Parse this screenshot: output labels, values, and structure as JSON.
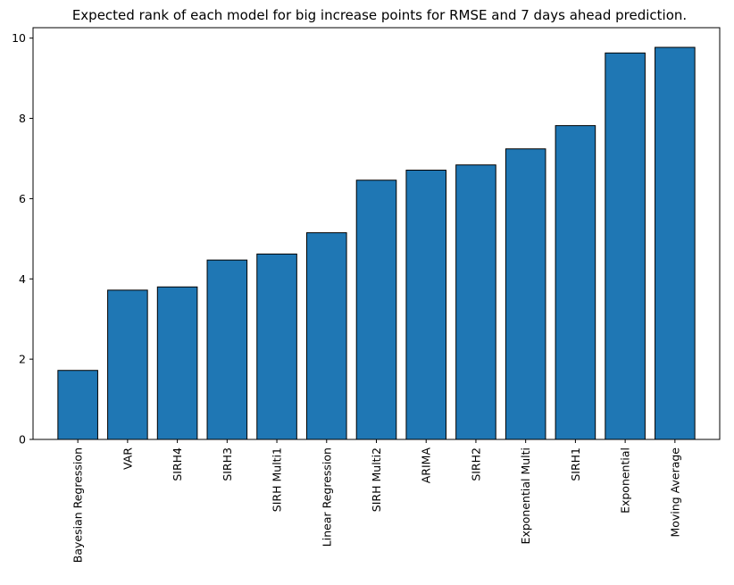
{
  "chart_data": {
    "type": "bar",
    "title": "Expected rank of each model for big increase points for RMSE and 7 days ahead prediction.",
    "xlabel": "",
    "ylabel": "",
    "categories": [
      "Bayesian Regression",
      "VAR",
      "SIRH4",
      "SIRH3",
      "SIRH Multi1",
      "Linear Regression",
      "SIRH Multi2",
      "ARIMA",
      "SIRH2",
      "Exponential Multi",
      "SIRH1",
      "Exponential",
      "Moving Average"
    ],
    "values": [
      1.72,
      3.72,
      3.8,
      4.47,
      4.62,
      5.15,
      6.46,
      6.71,
      6.84,
      7.24,
      7.82,
      9.63,
      9.77
    ],
    "ylim": [
      0,
      10.26
    ],
    "yticks": [
      "0",
      "2",
      "4",
      "6",
      "8",
      "10"
    ],
    "grid": false,
    "legend": "none",
    "bar_color": "#1f77b4",
    "edge_color": "#000000"
  }
}
